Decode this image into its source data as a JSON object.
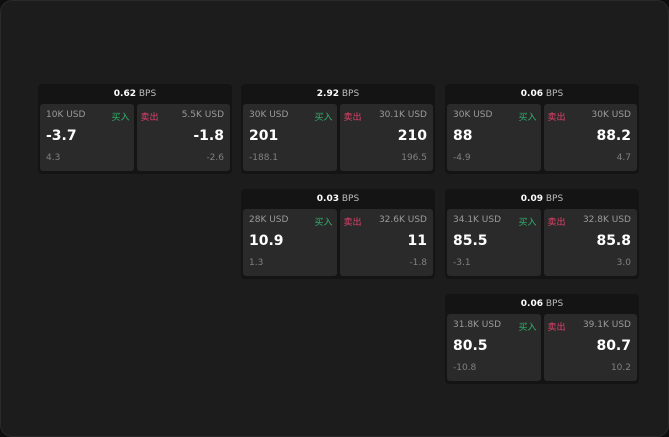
{
  "unit": "BPS",
  "buy_label": "买入",
  "sell_label": "卖出",
  "colors": {
    "buy": "#2fb36b",
    "sell": "#e0406a",
    "background": "#1c1c1c"
  },
  "widgets": [
    {
      "row": 0,
      "col": 0,
      "spread": "0.62",
      "buy": {
        "qty": "10K USD",
        "price": "-3.7",
        "change": "4.3"
      },
      "sell": {
        "qty": "5.5K USD",
        "price": "-1.8",
        "change": "-2.6"
      }
    },
    {
      "row": 0,
      "col": 1,
      "spread": "2.92",
      "buy": {
        "qty": "30K USD",
        "price": "201",
        "change": "-188.1"
      },
      "sell": {
        "qty": "30.1K USD",
        "price": "210",
        "change": "196.5"
      }
    },
    {
      "row": 0,
      "col": 2,
      "spread": "0.06",
      "buy": {
        "qty": "30K USD",
        "price": "88",
        "change": "-4.9"
      },
      "sell": {
        "qty": "30K USD",
        "price": "88.2",
        "change": "4.7"
      }
    },
    {
      "row": 1,
      "col": 1,
      "spread": "0.03",
      "buy": {
        "qty": "28K USD",
        "price": "10.9",
        "change": "1.3"
      },
      "sell": {
        "qty": "32.6K USD",
        "price": "11",
        "change": "-1.8"
      }
    },
    {
      "row": 1,
      "col": 2,
      "spread": "0.09",
      "buy": {
        "qty": "34.1K USD",
        "price": "85.5",
        "change": "-3.1"
      },
      "sell": {
        "qty": "32.8K USD",
        "price": "85.8",
        "change": "3.0"
      }
    },
    {
      "row": 2,
      "col": 2,
      "spread": "0.06",
      "buy": {
        "qty": "31.8K USD",
        "price": "80.5",
        "change": "-10.8"
      },
      "sell": {
        "qty": "39.1K USD",
        "price": "80.7",
        "change": "10.2"
      }
    }
  ]
}
